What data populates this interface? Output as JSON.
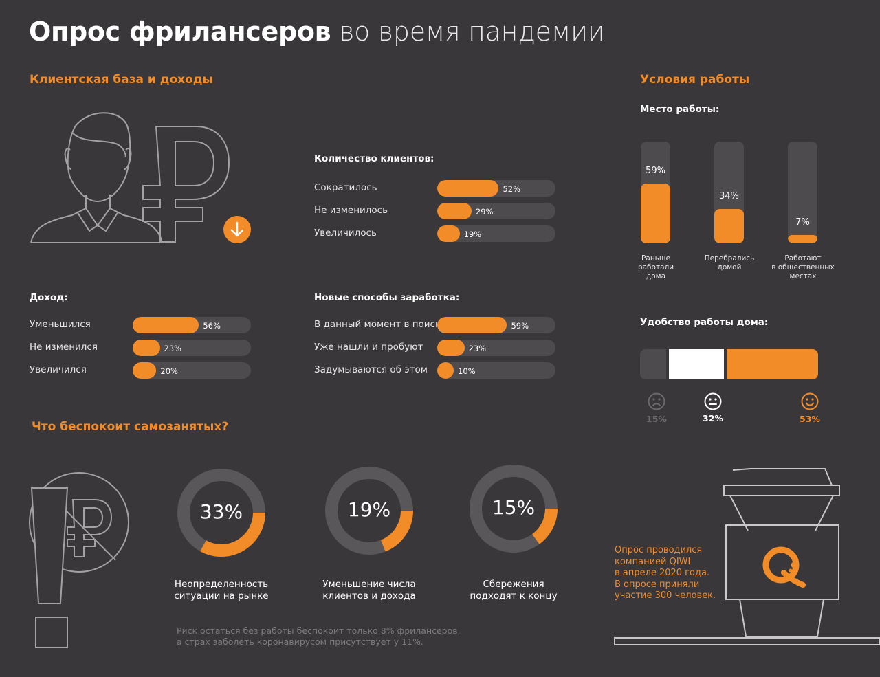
{
  "title": {
    "bold": "Опрос фрилансеров",
    "light": "во время пандемии"
  },
  "sections": {
    "clients_income": "Клиентская база и доходы",
    "work_conditions": "Условия работы",
    "worries": "Что беспокоит самозанятых?"
  },
  "colors": {
    "background": "#39373a",
    "accent": "#f28c28",
    "track": "#4d4b4e",
    "white": "#ffffff"
  },
  "icons": [
    "person-icon",
    "ruble-icon",
    "arrow-down-icon",
    "no-ruble-icon",
    "exclamation-icon",
    "sad-face-icon",
    "neutral-face-icon",
    "happy-face-icon",
    "coffee-cup-icon",
    "qiwi-logo-icon"
  ],
  "chart_data": [
    {
      "type": "bar",
      "title": "Количество клиентов:",
      "categories": [
        "Сократилось",
        "Не изменилось",
        "Увеличилось"
      ],
      "values": [
        52,
        29,
        19
      ],
      "labels": [
        "52%",
        "29%",
        "19%"
      ],
      "ylim": [
        0,
        100
      ]
    },
    {
      "type": "bar",
      "title": "Доход:",
      "categories": [
        "Уменьшился",
        "Не изменился",
        "Увеличился"
      ],
      "values": [
        56,
        23,
        20
      ],
      "labels": [
        "56%",
        "23%",
        "20%"
      ],
      "ylim": [
        0,
        100
      ]
    },
    {
      "type": "bar",
      "title": "Новые способы заработка:",
      "categories": [
        "В данный момент в поиске",
        "Уже нашли и пробуют",
        "Задумываются об этом"
      ],
      "values": [
        59,
        23,
        10
      ],
      "labels": [
        "59%",
        "23%",
        "10%"
      ],
      "ylim": [
        0,
        100
      ]
    },
    {
      "type": "bar",
      "title": "Место работы:",
      "categories": [
        "Раньше работали дома",
        "Перебрались домой",
        "Работают в общественных местах"
      ],
      "category_lines": [
        [
          "Раньше",
          "работали",
          "дома"
        ],
        [
          "Перебрались",
          "домой"
        ],
        [
          "Работают",
          "в общественных",
          "местах"
        ]
      ],
      "values": [
        59,
        34,
        7
      ],
      "labels": [
        "59%",
        "34%",
        "7%"
      ],
      "ylim": [
        0,
        100
      ]
    },
    {
      "type": "bar",
      "title": "Удобство работы дома:",
      "categories": [
        "sad",
        "neutral",
        "happy"
      ],
      "values": [
        15,
        32,
        53
      ],
      "labels": [
        "15%",
        "32%",
        "53%"
      ],
      "colors": [
        "#4d4b4e",
        "#ffffff",
        "#f28c28"
      ]
    },
    {
      "type": "pie",
      "title": "",
      "categories": [
        "Неопределенность ситуации на рынке",
        "Уменьшение числа клиентов и дохода",
        "Сбережения подходят к концу"
      ],
      "category_lines": [
        [
          "Неопределенность",
          "ситуации на рынке"
        ],
        [
          "Уменьшение числа",
          "клиентов и дохода"
        ],
        [
          "Сбережения",
          "подходят к концу"
        ]
      ],
      "values": [
        33,
        19,
        15
      ],
      "labels": [
        "33%",
        "19%",
        "15%"
      ]
    }
  ],
  "face_labels": [
    "15%",
    "32%",
    "53%"
  ],
  "worries_note": [
    "Риск остаться без работы беспокоит только 8% фрилансеров,",
    "а страх заболеть коронавирусом присутствует у 11%."
  ],
  "survey_note": [
    "Опрос проводился",
    "компанией QIWI",
    "в апреле 2020 года.",
    "В опросе приняли",
    "участие 300 человек."
  ]
}
